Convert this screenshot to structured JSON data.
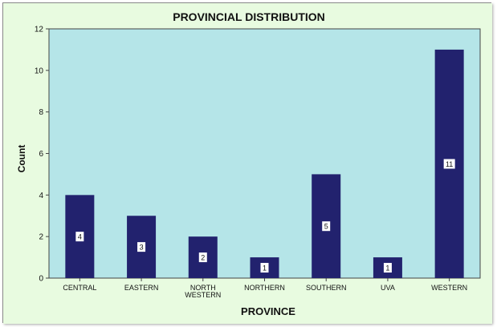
{
  "chart_data": {
    "type": "bar",
    "title": "PROVINCIAL DISTRIBUTION",
    "xlabel": "PROVINCE",
    "ylabel": "Count",
    "categories": [
      [
        "CENTRAL"
      ],
      [
        "EASTERN"
      ],
      [
        "NORTH",
        "WESTERN"
      ],
      [
        "NORTHERN"
      ],
      [
        "SOUTHERN"
      ],
      [
        "UVA"
      ],
      [
        "WESTERN"
      ]
    ],
    "values": [
      4,
      3,
      2,
      1,
      5,
      1,
      11
    ],
    "data_labels": [
      "4",
      "3",
      "2",
      "1",
      "5",
      "1",
      "11"
    ],
    "yticks": [
      0,
      2,
      4,
      6,
      8,
      10,
      12
    ],
    "ylim": [
      0,
      12
    ],
    "grid": false,
    "legend": "none",
    "colors": {
      "outer_background": "#e8fbe0",
      "plot_background": "#b5e5e8",
      "bar_fill": "#22226e"
    }
  }
}
